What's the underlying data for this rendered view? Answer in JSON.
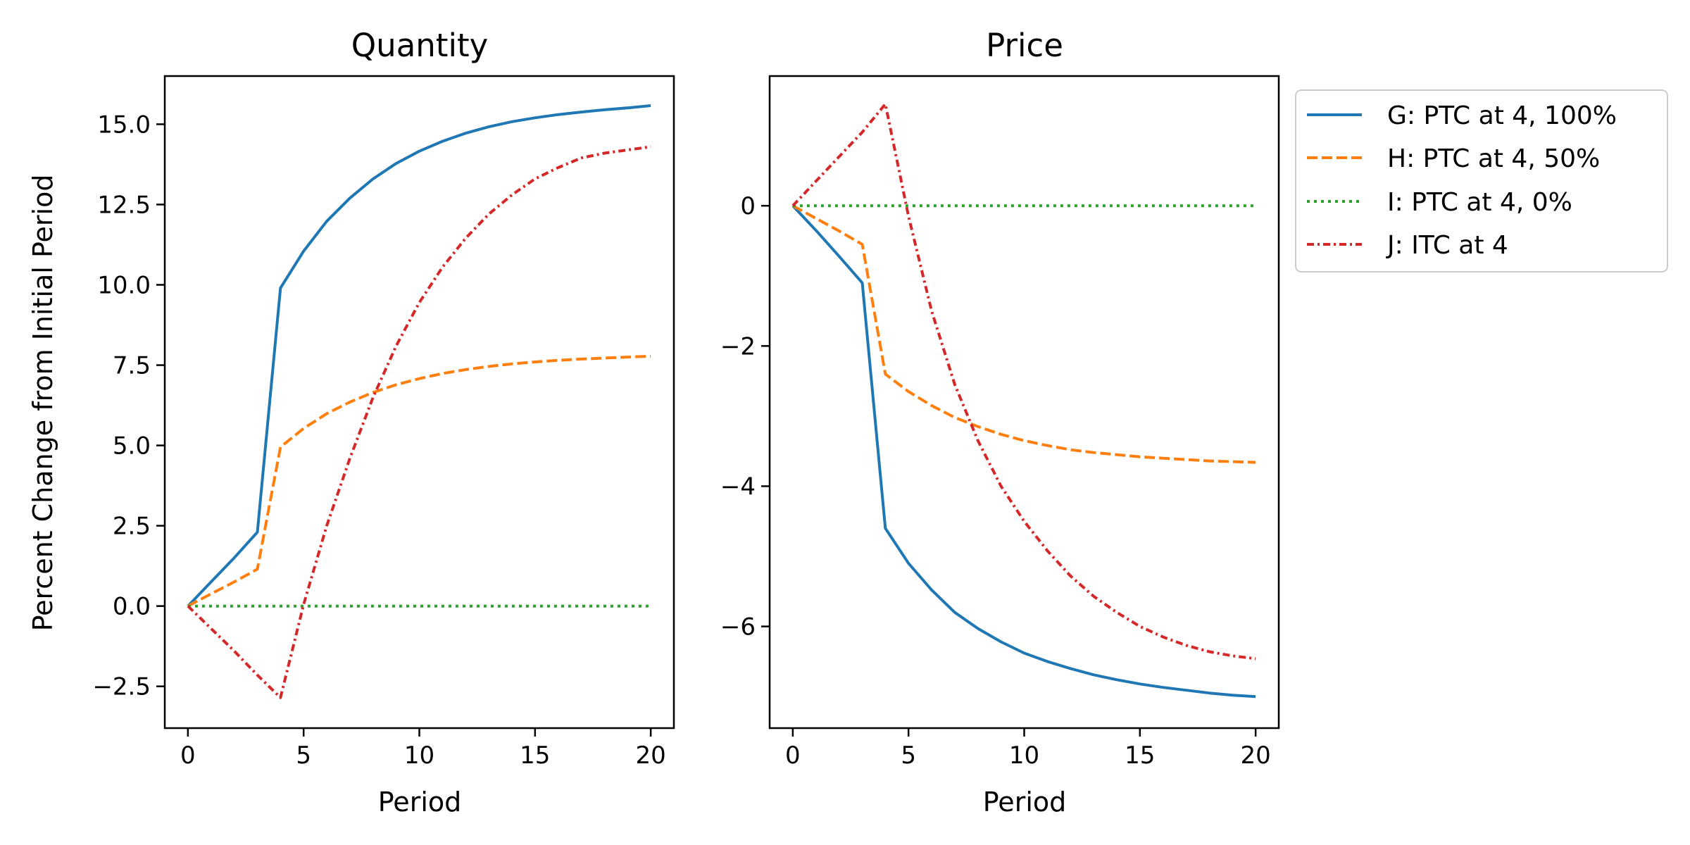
{
  "chart_data": [
    {
      "type": "line",
      "title": "Quantity",
      "xlabel": "Period",
      "ylabel": "Percent Change from Initial Period",
      "xlim": [
        -1,
        21
      ],
      "ylim": [
        -3.8,
        16.5
      ],
      "xticks": [
        0,
        5,
        10,
        15,
        20
      ],
      "yticks": [
        -2.5,
        0.0,
        2.5,
        5.0,
        7.5,
        10.0,
        12.5,
        15.0
      ],
      "ytick_labels": [
        "−2.5",
        "0.0",
        "2.5",
        "5.0",
        "7.5",
        "10.0",
        "12.5",
        "15.0"
      ],
      "xtick_labels": [
        "0",
        "5",
        "10",
        "15",
        "20"
      ],
      "x": [
        0,
        1,
        2,
        3,
        4,
        5,
        6,
        7,
        8,
        9,
        10,
        11,
        12,
        13,
        14,
        15,
        16,
        17,
        18,
        19,
        20
      ],
      "series": [
        {
          "name": "G: PTC at 4, 100%",
          "color": "#1f77b4",
          "dash": "solid",
          "values": [
            0,
            0.75,
            1.5,
            2.3,
            9.9,
            11.05,
            11.98,
            12.7,
            13.3,
            13.78,
            14.16,
            14.47,
            14.72,
            14.92,
            15.08,
            15.2,
            15.3,
            15.38,
            15.45,
            15.51,
            15.58
          ]
        },
        {
          "name": "H: PTC at 4, 50%",
          "color": "#ff7f0e",
          "dash": "dashed",
          "values": [
            0,
            0.38,
            0.75,
            1.15,
            4.95,
            5.53,
            5.99,
            6.35,
            6.65,
            6.89,
            7.08,
            7.24,
            7.36,
            7.46,
            7.54,
            7.6,
            7.65,
            7.69,
            7.72,
            7.75,
            7.78
          ]
        },
        {
          "name": "I: PTC at 4, 0%",
          "color": "#2ca02c",
          "dash": "dotted",
          "values": [
            0,
            0,
            0,
            0,
            0,
            0,
            0,
            0,
            0,
            0,
            0,
            0,
            0,
            0,
            0,
            0,
            0,
            0,
            0,
            0,
            0
          ]
        },
        {
          "name": "J: ITC at 4",
          "color": "#d62728",
          "dash": "dashdot",
          "values": [
            0,
            -0.7,
            -1.4,
            -2.15,
            -2.85,
            0.05,
            2.5,
            4.6,
            6.5,
            8.1,
            9.45,
            10.55,
            11.45,
            12.2,
            12.8,
            13.3,
            13.65,
            13.95,
            14.1,
            14.2,
            14.3
          ]
        }
      ]
    },
    {
      "type": "line",
      "title": "Price",
      "xlabel": "Period",
      "ylabel": "",
      "xlim": [
        -1,
        21
      ],
      "ylim": [
        -7.45,
        1.85
      ],
      "xticks": [
        0,
        5,
        10,
        15,
        20
      ],
      "yticks": [
        -6,
        -4,
        -2,
        0
      ],
      "ytick_labels": [
        "−6",
        "−4",
        "−2",
        "0"
      ],
      "xtick_labels": [
        "0",
        "5",
        "10",
        "15",
        "20"
      ],
      "x": [
        0,
        1,
        2,
        3,
        4,
        5,
        6,
        7,
        8,
        9,
        10,
        11,
        12,
        13,
        14,
        15,
        16,
        17,
        18,
        19,
        20
      ],
      "series": [
        {
          "name": "G: PTC at 4, 100%",
          "color": "#1f77b4",
          "dash": "solid",
          "values": [
            0,
            -0.35,
            -0.72,
            -1.1,
            -4.6,
            -5.1,
            -5.48,
            -5.8,
            -6.03,
            -6.22,
            -6.38,
            -6.5,
            -6.6,
            -6.69,
            -6.76,
            -6.82,
            -6.87,
            -6.91,
            -6.95,
            -6.98,
            -7.0
          ]
        },
        {
          "name": "H: PTC at 4, 50%",
          "color": "#ff7f0e",
          "dash": "dashed",
          "values": [
            0,
            -0.18,
            -0.36,
            -0.55,
            -2.4,
            -2.65,
            -2.85,
            -3.02,
            -3.15,
            -3.26,
            -3.35,
            -3.42,
            -3.48,
            -3.52,
            -3.55,
            -3.58,
            -3.6,
            -3.62,
            -3.64,
            -3.65,
            -3.66
          ]
        },
        {
          "name": "I: PTC at 4, 0%",
          "color": "#2ca02c",
          "dash": "dotted",
          "values": [
            0,
            0,
            0,
            0,
            0,
            0,
            0,
            0,
            0,
            0,
            0,
            0,
            0,
            0,
            0,
            0,
            0,
            0,
            0,
            0,
            0
          ]
        },
        {
          "name": "J: ITC at 4",
          "color": "#d62728",
          "dash": "dashdot",
          "values": [
            0,
            0.35,
            0.7,
            1.05,
            1.45,
            -0.15,
            -1.5,
            -2.55,
            -3.35,
            -4.0,
            -4.5,
            -4.92,
            -5.28,
            -5.57,
            -5.8,
            -6.0,
            -6.15,
            -6.27,
            -6.36,
            -6.42,
            -6.46
          ]
        }
      ]
    }
  ],
  "legend": {
    "placement": "outside-right",
    "items": [
      {
        "label": "G: PTC at 4, 100%",
        "color": "#1f77b4",
        "dash": "solid"
      },
      {
        "label": "H: PTC at 4, 50%",
        "color": "#ff7f0e",
        "dash": "dashed"
      },
      {
        "label": "I: PTC at 4, 0%",
        "color": "#2ca02c",
        "dash": "dotted"
      },
      {
        "label": "J: ITC at 4",
        "color": "#d62728",
        "dash": "dashdot"
      }
    ]
  }
}
